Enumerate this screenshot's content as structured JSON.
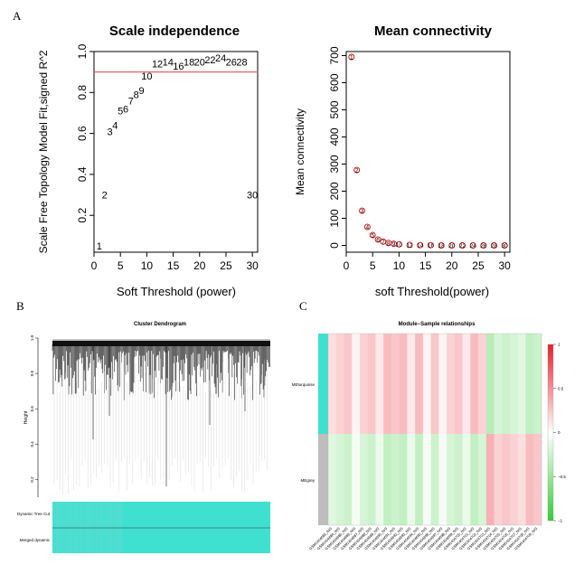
{
  "panels": {
    "a": "A",
    "b": "B",
    "c": "C"
  },
  "colors": {
    "threshold_line": "#e06666",
    "point_red": "#cc0000",
    "turquoise": "#40e0d0",
    "grey": "#bebebe",
    "heat_pos": "#e8202a",
    "heat_neg": "#33cc33"
  },
  "chart_data": [
    {
      "type": "scatter",
      "id": "scale-independence",
      "title": "Scale independence",
      "xlabel": "Soft Threshold (power)",
      "ylabel": "Scale Free Topology Model Fit,signed R^2",
      "xlim": [
        0,
        31
      ],
      "ylim": [
        0.02,
        1.0
      ],
      "xticks": [
        0,
        5,
        10,
        15,
        20,
        25,
        30
      ],
      "yticks": [
        0.2,
        0.4,
        0.6,
        0.8,
        1.0
      ],
      "ytick_labels": [
        "0.2",
        "0.4",
        "0.6",
        "0.8",
        "1.0"
      ],
      "threshold": 0.9,
      "points": [
        {
          "x": 1,
          "y": 0.05,
          "label": "1"
        },
        {
          "x": 2,
          "y": 0.3,
          "label": "2"
        },
        {
          "x": 3,
          "y": 0.61,
          "label": "3"
        },
        {
          "x": 4,
          "y": 0.64,
          "label": "4"
        },
        {
          "x": 5,
          "y": 0.71,
          "label": "5"
        },
        {
          "x": 6,
          "y": 0.72,
          "label": "6"
        },
        {
          "x": 7,
          "y": 0.76,
          "label": "7"
        },
        {
          "x": 8,
          "y": 0.79,
          "label": "8"
        },
        {
          "x": 9,
          "y": 0.81,
          "label": "9"
        },
        {
          "x": 10,
          "y": 0.88,
          "label": "10"
        },
        {
          "x": 12,
          "y": 0.94,
          "label": "12"
        },
        {
          "x": 14,
          "y": 0.95,
          "label": "14"
        },
        {
          "x": 16,
          "y": 0.93,
          "label": "16"
        },
        {
          "x": 18,
          "y": 0.95,
          "label": "18"
        },
        {
          "x": 20,
          "y": 0.95,
          "label": "20"
        },
        {
          "x": 22,
          "y": 0.96,
          "label": "22"
        },
        {
          "x": 24,
          "y": 0.97,
          "label": "24"
        },
        {
          "x": 26,
          "y": 0.95,
          "label": "26"
        },
        {
          "x": 28,
          "y": 0.95,
          "label": "28"
        },
        {
          "x": 30,
          "y": 0.3,
          "label": "30"
        }
      ]
    },
    {
      "type": "scatter",
      "id": "mean-connectivity",
      "title": "Mean connectivity",
      "xlabel": "soft Threshold(power)",
      "ylabel": "Mean connectivity",
      "xlim": [
        0,
        31
      ],
      "ylim": [
        -25,
        715
      ],
      "xticks": [
        0,
        5,
        10,
        15,
        20,
        25,
        30
      ],
      "yticks": [
        0,
        100,
        200,
        300,
        400,
        500,
        600,
        700
      ],
      "points": [
        {
          "x": 1,
          "y": 695,
          "label": "1"
        },
        {
          "x": 2,
          "y": 278,
          "label": "2"
        },
        {
          "x": 3,
          "y": 128,
          "label": "3"
        },
        {
          "x": 4,
          "y": 68,
          "label": "4"
        },
        {
          "x": 5,
          "y": 38,
          "label": "5"
        },
        {
          "x": 6,
          "y": 22,
          "label": "6"
        },
        {
          "x": 7,
          "y": 14,
          "label": "7"
        },
        {
          "x": 8,
          "y": 9,
          "label": "8"
        },
        {
          "x": 9,
          "y": 6,
          "label": "9"
        },
        {
          "x": 10,
          "y": 4,
          "label": "10"
        },
        {
          "x": 12,
          "y": 2,
          "label": "12"
        },
        {
          "x": 14,
          "y": 1,
          "label": "14"
        },
        {
          "x": 16,
          "y": 1,
          "label": "16"
        },
        {
          "x": 18,
          "y": 0,
          "label": "18"
        },
        {
          "x": 20,
          "y": 0,
          "label": "20"
        },
        {
          "x": 22,
          "y": 0,
          "label": "22"
        },
        {
          "x": 24,
          "y": 0,
          "label": "24"
        },
        {
          "x": 26,
          "y": 0,
          "label": "26"
        },
        {
          "x": 28,
          "y": 0,
          "label": "28"
        },
        {
          "x": 30,
          "y": 0,
          "label": "30"
        }
      ]
    },
    {
      "type": "dendrogram",
      "id": "cluster-dendrogram",
      "title": "Cluster Dendrogram",
      "ylabel": "Height",
      "ylim": [
        0.1,
        1.0
      ],
      "yticks": [
        0.2,
        0.4,
        0.6,
        0.8,
        1.0
      ],
      "ytick_labels": [
        "0.2",
        "0.4",
        "0.6",
        "0.8",
        "1.0"
      ],
      "color_rows": [
        "Dynamic Tree Cut",
        "Merged dynamic"
      ],
      "row_color": "turquoise"
    },
    {
      "type": "heatmap",
      "id": "module-sample",
      "title": "Module−Sample relationships",
      "rows": [
        "MEturquoise",
        "MEgrey"
      ],
      "row_colors": [
        "turquoise",
        "grey"
      ],
      "legend_ticks": [
        1,
        0.5,
        0,
        -0.5,
        -1
      ],
      "legend_tick_labels": [
        "1",
        "0.5",
        "0",
        "−0.5",
        "−1"
      ],
      "columns": [
        "GSM1404682_N/S",
        "GSM1404684_N/S",
        "GSM1404685_N/S",
        "GSM1404686_N/S",
        "GSM1404687_N/S",
        "GSM1404688_N/S",
        "GSM1404689_N/S",
        "GSM1404690_N/S",
        "GSM1404691_N/S",
        "GSM1404692_N/S",
        "GSM1404693_N/S",
        "GSM1404694_N/S",
        "GSM1404695_N/S",
        "GSM1404696_N/S",
        "GSM1404697_N/S",
        "GSM1404698_N/S",
        "GSM1404699_N/S",
        "GSM1404700_N/S",
        "GSM1404701_N/S",
        "GSM1404702_N/S",
        "GSM1404703_N/S",
        "GSM1404704_N/S",
        "GSM1404705_N/S",
        "GSM1404706_N/S",
        "GSM1404707_N/S",
        "GSM1404708_N/S",
        "GSM1404709_N/S"
      ],
      "values": [
        [
          0.15,
          0.2,
          0.25,
          0.05,
          0.2,
          0.25,
          0.1,
          0.3,
          0.25,
          0.3,
          0.1,
          0.3,
          0.05,
          0.25,
          0.05,
          0.2,
          0.25,
          0.1,
          0.3,
          0.2,
          -0.35,
          -0.2,
          -0.25,
          -0.2,
          -0.15,
          -0.3,
          -0.25
        ],
        [
          -0.15,
          -0.2,
          -0.25,
          -0.05,
          -0.2,
          -0.25,
          -0.1,
          -0.3,
          -0.25,
          -0.3,
          -0.1,
          -0.3,
          -0.05,
          -0.25,
          -0.05,
          -0.2,
          -0.25,
          -0.1,
          -0.3,
          -0.2,
          0.35,
          0.2,
          0.25,
          0.2,
          0.15,
          0.3,
          0.25
        ]
      ]
    }
  ]
}
